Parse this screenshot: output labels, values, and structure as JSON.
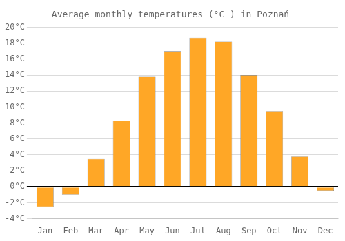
{
  "chart_data": {
    "type": "bar",
    "title": "Average monthly temperatures (°C ) in Poznań",
    "categories": [
      "Jan",
      "Feb",
      "Mar",
      "Apr",
      "May",
      "Jun",
      "Jul",
      "Aug",
      "Sep",
      "Oct",
      "Nov",
      "Dec"
    ],
    "values": [
      -2.5,
      -1.0,
      3.5,
      8.3,
      13.8,
      17.0,
      18.7,
      18.2,
      14.0,
      9.5,
      3.8,
      -0.5
    ],
    "color": "#FFA726",
    "ylim": [
      -4,
      20
    ],
    "yticks": [
      {
        "value": -4,
        "label": "-4°C"
      },
      {
        "value": -2,
        "label": "-2°C"
      },
      {
        "value": 0,
        "label": "0°C"
      },
      {
        "value": 2,
        "label": "2°C"
      },
      {
        "value": 4,
        "label": "4°C"
      },
      {
        "value": 6,
        "label": "6°C"
      },
      {
        "value": 8,
        "label": "8°C"
      },
      {
        "value": 10,
        "label": "10°C"
      },
      {
        "value": 12,
        "label": "12°C"
      },
      {
        "value": 14,
        "label": "14°C"
      },
      {
        "value": 16,
        "label": "16°C"
      },
      {
        "value": 18,
        "label": "18°C"
      },
      {
        "value": 20,
        "label": "20°C"
      }
    ],
    "grid": true
  }
}
